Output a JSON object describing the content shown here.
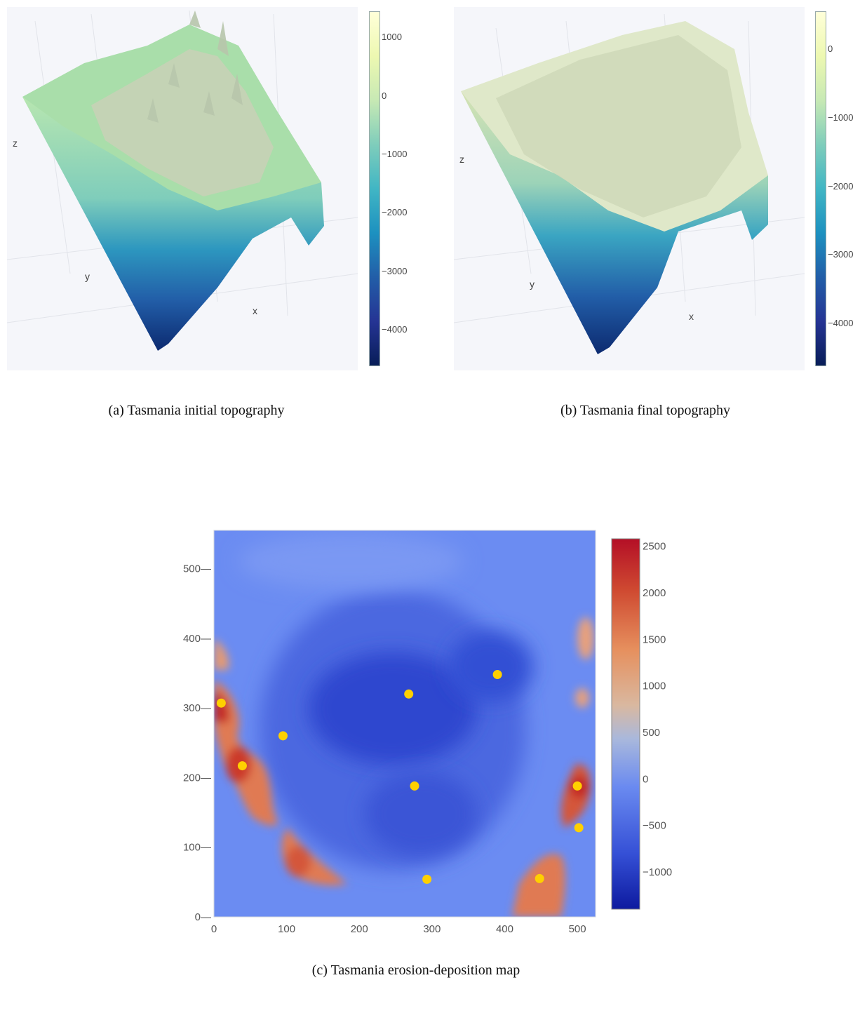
{
  "colors": {
    "panel_bg": "#f5f6fa",
    "ygnbu": [
      "#081d58",
      "#253494",
      "#225ea8",
      "#1d91c0",
      "#41b6c4",
      "#7fcdbb",
      "#c7e9b4",
      "#edf8b1",
      "#ffffd9"
    ],
    "coolwarm": [
      "#0d1a9f",
      "#3550d6",
      "#6a8af0",
      "#a9b8dc",
      "#d9b8a0",
      "#e6905e",
      "#cf4a31",
      "#b40f26"
    ],
    "marker": "#ffd000"
  },
  "captions": {
    "a": "(a)  Tasmania initial topography",
    "b": "(b)  Tasmania final topography",
    "c": "(c)  Tasmania erosion-deposition map"
  },
  "chart_data": [
    {
      "id": "a",
      "type": "surface",
      "axes": {
        "x": "x",
        "y": "y",
        "z": "z"
      },
      "colorbar": {
        "min": -4600,
        "max": 1450,
        "ticks": [
          1000,
          0,
          -1000,
          -2000,
          -3000,
          -4000
        ],
        "tick_labels": [
          "1000",
          "0",
          "−1000",
          "−2000",
          "−3000",
          "−4000"
        ]
      }
    },
    {
      "id": "b",
      "type": "surface",
      "axes": {
        "x": "x",
        "y": "y",
        "z": "z"
      },
      "colorbar": {
        "min": -4600,
        "max": 550,
        "ticks": [
          0,
          -1000,
          -2000,
          -3000,
          -4000
        ],
        "tick_labels": [
          "0",
          "−1000",
          "−2000",
          "−3000",
          "−4000"
        ]
      }
    },
    {
      "id": "c",
      "type": "heatmap",
      "xlim": [
        0,
        525
      ],
      "ylim": [
        0,
        555
      ],
      "xticks": [
        0,
        100,
        200,
        300,
        400,
        500
      ],
      "yticks": [
        0,
        100,
        200,
        300,
        400,
        500
      ],
      "xtick_labels": [
        "0",
        "100",
        "200",
        "300",
        "400",
        "500"
      ],
      "ytick_labels": [
        "0—",
        "100—",
        "200—",
        "300—",
        "400—",
        "500—"
      ],
      "colorbar": {
        "min": -1400,
        "max": 2580,
        "ticks": [
          2500,
          2000,
          1500,
          1000,
          500,
          0,
          -500,
          -1000
        ],
        "tick_labels": [
          "2500",
          "2000",
          "1500",
          "1000",
          "500",
          "0",
          "−500",
          "−1000"
        ]
      },
      "markers": [
        {
          "x": 10,
          "y": 307
        },
        {
          "x": 39,
          "y": 217
        },
        {
          "x": 95,
          "y": 260
        },
        {
          "x": 268,
          "y": 320
        },
        {
          "x": 390,
          "y": 348
        },
        {
          "x": 276,
          "y": 188
        },
        {
          "x": 293,
          "y": 54
        },
        {
          "x": 448,
          "y": 55
        },
        {
          "x": 500,
          "y": 188
        },
        {
          "x": 502,
          "y": 128
        }
      ]
    }
  ]
}
